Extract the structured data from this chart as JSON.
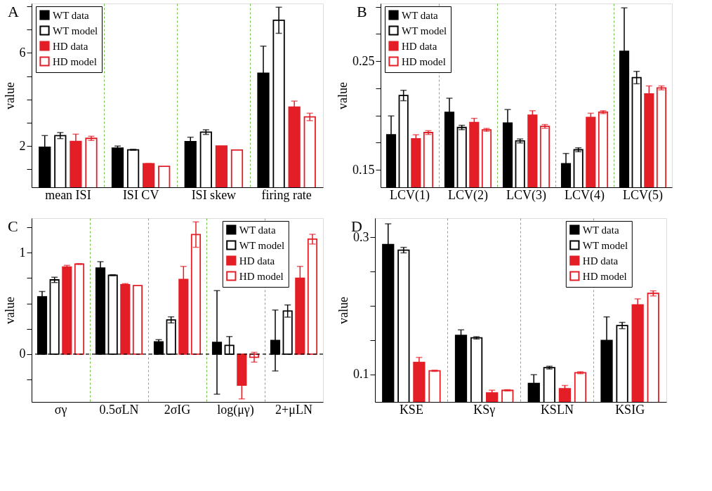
{
  "chart_data": [
    {
      "type": "bar",
      "annotations": [
        "A"
      ],
      "ylabel": "value",
      "categories": [
        "mean ISI",
        "ISI CV",
        "ISI skew",
        "firing rate"
      ],
      "series": [
        {
          "name": "WT data",
          "color": "#000000",
          "values": [
            1.95,
            1.91,
            2.19,
            5.13
          ],
          "errors": [
            0.5,
            0.09,
            0.19,
            1.16
          ]
        },
        {
          "name": "WT model",
          "color": "#000000",
          "values": [
            2.45,
            1.84,
            2.6,
            7.4
          ],
          "errors": [
            0.13,
            0.02,
            0.1,
            0.56
          ]
        },
        {
          "name": "HD data",
          "color": "#e41e26",
          "values": [
            2.2,
            1.24,
            2.0,
            3.67
          ],
          "errors": [
            0.31,
            0.01,
            null,
            0.26
          ]
        },
        {
          "name": "HD model",
          "color": "#e41e26",
          "values": [
            2.33,
            1.13,
            1.83,
            3.25
          ],
          "errors": [
            0.09,
            null,
            null,
            0.16
          ]
        }
      ],
      "ylim": [
        0.23,
        8.12
      ],
      "yticks": [
        {
          "value": 1,
          "label": null
        },
        2,
        {
          "value": 3,
          "label": null
        },
        {
          "value": 4,
          "label": null
        },
        {
          "value": 5,
          "label": null
        },
        6,
        {
          "value": 7,
          "label": null
        },
        {
          "value": 8,
          "label": null
        }
      ],
      "grid": "x",
      "legend": "top left"
    },
    {
      "type": "bar",
      "annotations": [
        "B"
      ],
      "ylabel": "value",
      "categories": [
        "LCV(1)",
        "LCV(2)",
        "LCV(3)",
        "LCV(4)",
        "LCV(5)"
      ],
      "series": [
        {
          "name": "WT data",
          "color": "#000000",
          "values": [
            0.1823,
            0.203,
            0.1931,
            0.1556,
            0.259
          ],
          "errors": [
            0.0173,
            0.0129,
            0.0124,
            0.0095,
            0.04
          ]
        },
        {
          "name": "WT model",
          "color": "#000000",
          "values": [
            0.2184,
            0.189,
            0.1766,
            0.1685,
            0.2349
          ],
          "errors": [
            0.0048,
            0.002,
            0.0018,
            0.0018,
            0.0057
          ]
        },
        {
          "name": "HD data",
          "color": "#e41e26",
          "values": [
            0.1785,
            0.1936,
            0.2004,
            0.1983,
            0.2198
          ],
          "errors": [
            0.0038,
            0.0038,
            0.004,
            0.0038,
            0.0074
          ]
        },
        {
          "name": "HD model",
          "color": "#e41e26",
          "values": [
            0.1843,
            0.1868,
            0.19,
            0.2031,
            0.2254
          ],
          "errors": [
            0.0017,
            0.0013,
            0.0017,
            0.0013,
            0.0018
          ]
        }
      ],
      "ylim": [
        0.134,
        0.303
      ],
      "yticks": [
        0.15,
        {
          "value": 0.175,
          "label": null
        },
        {
          "value": 0.2,
          "label": null
        },
        {
          "value": 0.225,
          "label": null
        },
        0.25,
        {
          "value": 0.275,
          "label": null
        },
        {
          "value": 0.3,
          "label": null
        }
      ],
      "grid": "x",
      "legend": "top left"
    },
    {
      "type": "bar",
      "annotations": [
        "C"
      ],
      "ylabel": "value",
      "categories": [
        "σγ",
        "0.5σLN",
        "2σIG",
        "log(μγ)",
        "2+μLN"
      ],
      "series": [
        {
          "name": "WT data",
          "color": "#000000",
          "values": [
            0.566,
            0.849,
            0.122,
            0.116,
            0.135
          ],
          "errors": [
            0.052,
            0.062,
            0.021,
            0.51,
            0.3
          ]
        },
        {
          "name": "WT model",
          "color": "#000000",
          "values": [
            0.732,
            0.778,
            0.338,
            0.087,
            0.425
          ],
          "errors": [
            0.026,
            0.005,
            0.03,
            0.087,
            0.06
          ]
        },
        {
          "name": "HD data",
          "color": "#e41e26",
          "values": [
            0.859,
            0.685,
            0.737,
            -0.305,
            0.749
          ],
          "errors": [
            0.016,
            0.01,
            0.128,
            0.135,
            0.116
          ]
        },
        {
          "name": "HD model",
          "color": "#e41e26",
          "values": [
            0.888,
            0.676,
            1.178,
            -0.03,
            1.133
          ],
          "errors": [
            0.004,
            null,
            0.125,
            0.048,
            0.048
          ]
        }
      ],
      "ylim": [
        -0.47,
        1.34
      ],
      "yticks": [
        {
          "value": -0.25,
          "label": null
        },
        0,
        {
          "value": 0.25,
          "label": null
        },
        {
          "value": 0.5,
          "label": null
        },
        {
          "value": 0.75,
          "label": null
        },
        1,
        {
          "value": 1.25,
          "label": null
        }
      ],
      "ref_lines": [
        {
          "axis": "y",
          "value": 0,
          "color": "#000000",
          "line_style": "dashed"
        }
      ],
      "grid": "x",
      "legend": "top right"
    },
    {
      "type": "bar",
      "annotations": [
        "D"
      ],
      "ylabel": "value",
      "categories": [
        "KSE",
        "KSγ",
        "KSLN",
        "KSIG"
      ],
      "series": [
        {
          "name": "WT data",
          "color": "#000000",
          "values": [
            0.2894,
            0.1569,
            0.0869,
            0.1497
          ],
          "errors": [
            0.0303,
            0.0082,
            0.0128,
            0.0343
          ]
        },
        {
          "name": "WT model",
          "color": "#000000",
          "values": [
            0.2814,
            0.1534,
            0.11,
            0.1714
          ],
          "errors": [
            0.004,
            0.0017,
            0.002,
            0.0046
          ]
        },
        {
          "name": "HD data",
          "color": "#e41e26",
          "values": [
            0.1177,
            0.0731,
            0.0794,
            0.2014
          ],
          "errors": [
            0.0072,
            0.004,
            0.0046,
            0.0089
          ]
        },
        {
          "name": "HD model",
          "color": "#e41e26",
          "values": [
            0.1054,
            0.0769,
            0.1026,
            0.2183
          ],
          "errors": [
            0.0009,
            0.0009,
            0.0014,
            0.0037
          ]
        }
      ],
      "ylim": [
        0.06,
        0.328
      ],
      "yticks": [
        0.1,
        {
          "value": 0.15,
          "label": null
        },
        {
          "value": 0.2,
          "label": null
        },
        {
          "value": 0.25,
          "label": null
        },
        0.3
      ],
      "grid": "x",
      "legend": "top right"
    }
  ]
}
